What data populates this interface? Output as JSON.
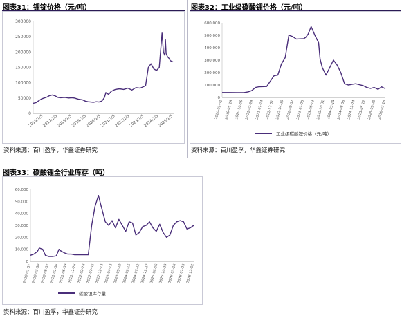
{
  "colors": {
    "line": "#4a2e7a",
    "title_rule": "#2b1a55",
    "frame": "#c9c9d6",
    "axis_text": "#555555"
  },
  "panels": [
    {
      "title": "图表31：锂锭价格（元/吨）",
      "source": "资料来源：百川盈孚，华鑫证券研究"
    },
    {
      "title": "图表32：工业级碳酸锂价格（元/吨）",
      "source": "资料来源：百川盈孚，华鑫证券研究"
    },
    {
      "title": "图表33：碳酸锂全行业库存（吨）",
      "source": "资料来源：百川盈孚，华鑫证券研究"
    }
  ],
  "chart_data": [
    {
      "type": "line",
      "title": "锂锭价格（元/吨）",
      "yticks": [
        "0",
        "50000",
        "100000",
        "150000",
        "200000",
        "250000",
        "300000"
      ],
      "ylim": [
        0,
        300000
      ],
      "xlim": [
        0,
        10.3
      ],
      "xtick_labels": [
        "2016/1/5",
        "2017/1/5",
        "2018/1/5",
        "2019/1/5",
        "2020/1/5",
        "2021/1/5",
        "2022/1/5",
        "2023/1/5",
        "2024/1/5",
        "2025/1/5"
      ],
      "series": [
        {
          "x": [
            0,
            0.2,
            0.4,
            0.6,
            0.8,
            1.0,
            1.2,
            1.4,
            1.6,
            1.8,
            2.0,
            2.3,
            2.6,
            2.8,
            3.0,
            3.3,
            3.6,
            3.8,
            4.0,
            4.2,
            4.4,
            4.6,
            4.8,
            5.0,
            5.1,
            5.2,
            5.3,
            5.5,
            5.7,
            6.0,
            6.3,
            6.6,
            6.9,
            7.2,
            7.5,
            7.8,
            8.0,
            8.2,
            8.4,
            8.6,
            8.8,
            9.0,
            9.2,
            9.4,
            9.5,
            9.6,
            9.65,
            9.7,
            9.8,
            9.9,
            10.0,
            10.1,
            10.2
          ],
          "values": [
            33000,
            35000,
            41000,
            47000,
            50000,
            53000,
            58000,
            60000,
            57000,
            52000,
            51000,
            52000,
            50000,
            51000,
            50000,
            46000,
            44000,
            40000,
            38000,
            37000,
            36000,
            38000,
            37000,
            40000,
            45000,
            52000,
            68000,
            62000,
            72000,
            78000,
            80000,
            78000,
            82000,
            76000,
            84000,
            82000,
            86000,
            90000,
            150000,
            162000,
            145000,
            140000,
            150000,
            262000,
            200000,
            190000,
            240000,
            195000,
            185000,
            180000,
            172000,
            170000,
            168000
          ]
        }
      ]
    },
    {
      "type": "line",
      "title": "工业级碳酸锂价格（元/吨）",
      "yticks": [
        "0",
        "100,000",
        "200,000",
        "300,000",
        "400,000",
        "500,000",
        "600,000"
      ],
      "ylim": [
        0,
        600000
      ],
      "xlim": [
        0,
        22
      ],
      "xtick_labels": [
        "2020-01-01",
        "2020-05-28",
        "2020-10-06",
        "2021-02-24",
        "2021-07-14",
        "2021-12-01",
        "2022-04-20",
        "2022-09-07",
        "2023-01-25",
        "2023-06-13",
        "2023-10-31",
        "2024-03-19",
        "2024-08-06",
        "2024-12-24",
        "2025-05-12",
        "2025-09-29",
        "2026-02-16"
      ],
      "legend": "工业级碳酸锂价格（元/吨）",
      "series": [
        {
          "name": "工业级碳酸锂价格（元/吨）",
          "x": [
            0,
            1,
            2,
            3,
            3.5,
            4,
            4.5,
            5,
            6,
            7,
            7.5,
            8,
            8.5,
            9,
            9.5,
            10,
            11,
            11.3,
            11.6,
            12,
            12.5,
            13,
            13.2,
            13.5,
            14,
            15,
            15.5,
            16,
            16.5,
            17,
            18,
            19,
            19.5,
            20,
            20.5,
            21,
            21.5,
            22
          ],
          "values": [
            40000,
            40000,
            39000,
            40000,
            45000,
            55000,
            80000,
            86000,
            88000,
            175000,
            180000,
            270000,
            320000,
            500000,
            490000,
            470000,
            472000,
            485000,
            510000,
            570000,
            500000,
            440000,
            310000,
            240000,
            180000,
            300000,
            260000,
            200000,
            110000,
            100000,
            110000,
            95000,
            80000,
            72000,
            80000,
            65000,
            85000,
            70000
          ]
        }
      ]
    },
    {
      "type": "line",
      "title": "碳酸锂全行业库存（吨）",
      "yticks": [
        "0",
        "10,000",
        "20,000",
        "30,000",
        "40,000",
        "50,000",
        "60,000"
      ],
      "ylim": [
        0,
        60000
      ],
      "xlim": [
        0,
        24
      ],
      "xtick_labels": [
        "2020-01-01",
        "2020-03-30",
        "2020-08-02",
        "2021-01-06",
        "2021-06-09",
        "2021-11-26",
        "2022-02-28",
        "2022-07-05",
        "2022-12-12",
        "2023-04-13",
        "2023-09-29",
        "2024-02-15",
        "2024-07-22",
        "2024-12-27",
        "2025-06-06",
        "2025-10-29",
        "2026-03-16",
        "2026-07-23",
        "2026-12-02"
      ],
      "legend": "碳酸锂库存量",
      "series": [
        {
          "name": "碳酸锂库存量",
          "x": [
            0,
            0.5,
            1,
            1.3,
            1.8,
            2.2,
            2.7,
            3.2,
            3.8,
            4.2,
            4.5,
            5,
            5.5,
            6,
            6.5,
            7,
            7.5,
            8,
            8.5,
            9,
            9.5,
            10,
            10.3,
            11,
            11.5,
            12,
            12.5,
            13,
            13.5,
            14,
            14.5,
            15,
            15.5,
            16,
            16.5,
            17,
            17.5,
            18,
            18.5,
            19,
            19.5,
            20,
            20.5,
            21,
            21.5,
            22,
            22.5,
            23,
            23.5,
            24
          ],
          "values": [
            5000,
            6000,
            8000,
            11000,
            10000,
            5000,
            4000,
            4000,
            4500,
            10000,
            8500,
            7000,
            6000,
            6000,
            5500,
            5500,
            5500,
            5500,
            5500,
            30000,
            46000,
            55000,
            48000,
            33000,
            30000,
            34000,
            28000,
            35000,
            30000,
            25000,
            33000,
            32000,
            22000,
            24000,
            29000,
            30000,
            33000,
            28000,
            25000,
            31000,
            24000,
            20000,
            22000,
            30000,
            33000,
            34000,
            33000,
            27000,
            28000,
            30000
          ]
        }
      ]
    }
  ]
}
